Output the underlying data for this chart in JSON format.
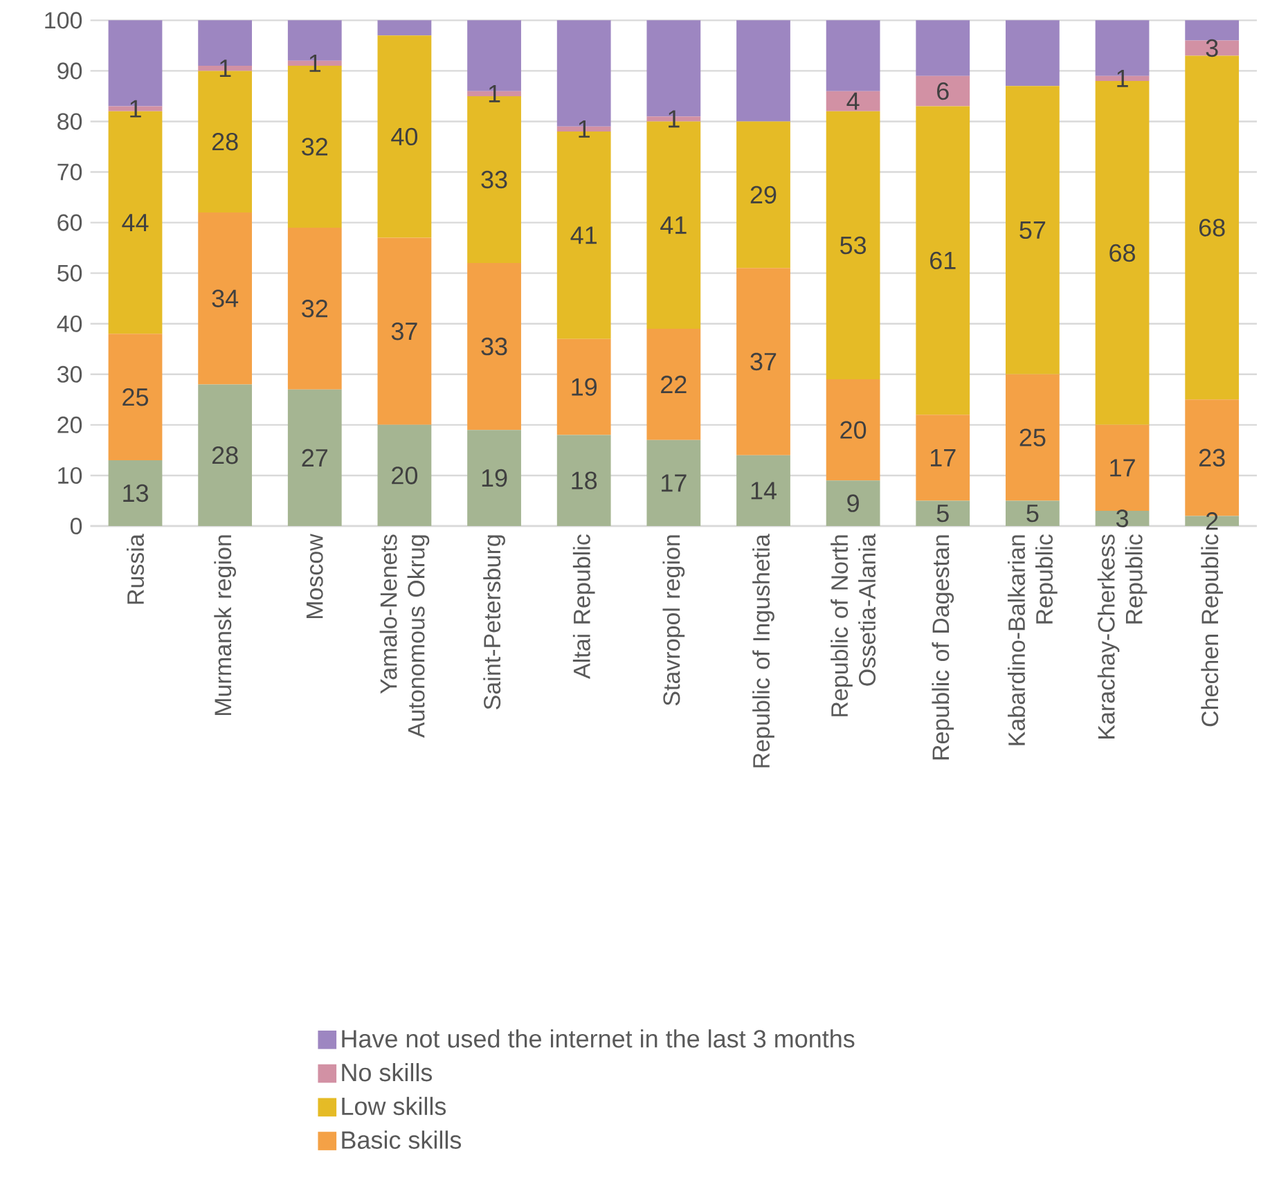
{
  "chart_data": {
    "type": "bar",
    "stacked": true,
    "grid": "y",
    "legend": "bottom",
    "categories": [
      "Russia",
      "Murmansk region",
      "Moscow",
      "Yamalo-Nenets Autonomous Okrug",
      "Saint-Petersburg",
      "Altai Republic",
      "Stavropol region",
      "Republic of Ingushetia",
      "Republic of North Ossetia-Alania",
      "Republic of Dagestan",
      "Kabardino-Balkarian Republic",
      "Karachay-Cherkess Republic",
      "Chechen Republic"
    ],
    "ylim": [
      0,
      100
    ],
    "yticks": [
      0,
      10,
      20,
      30,
      40,
      50,
      60,
      70,
      80,
      90,
      100
    ],
    "series": [
      {
        "color": "#a5b592",
        "values": [
          13,
          28,
          27,
          20,
          19,
          18,
          17,
          14,
          9,
          5,
          5,
          3,
          2
        ],
        "value_labels": [
          "13",
          "28",
          "27",
          "20",
          "19",
          "18",
          "17",
          "14",
          "9",
          "5",
          "5",
          "3",
          "2"
        ]
      },
      {
        "name": "Basic skills",
        "color": "#f4a146",
        "values": [
          25,
          34,
          32,
          37,
          33,
          19,
          22,
          37,
          20,
          17,
          25,
          17,
          23
        ],
        "value_labels": [
          "25",
          "34",
          "32",
          "37",
          "33",
          "19",
          "22",
          "37",
          "20",
          "17",
          "25",
          "17",
          "23"
        ]
      },
      {
        "name": "Low skills",
        "color": "#e5bb26",
        "values": [
          44,
          28,
          32,
          40,
          33,
          41,
          41,
          29,
          53,
          61,
          57,
          68,
          68
        ],
        "value_labels": [
          "44",
          "28",
          "32",
          "40",
          "33",
          "41",
          "41",
          "29",
          "53",
          "61",
          "57",
          "68",
          "68"
        ]
      },
      {
        "name": "No skills",
        "color": "#d291a4",
        "values": [
          1,
          1,
          1,
          0,
          1,
          1,
          1,
          0,
          4,
          6,
          0,
          1,
          3
        ],
        "value_labels": [
          "1",
          "1",
          "1",
          null,
          "1",
          "1",
          "1",
          null,
          "4",
          "6",
          null,
          "1",
          "3"
        ]
      },
      {
        "name": "Have not used the internet in the last 3 months",
        "color": "#9d86c1",
        "values": [
          17,
          9,
          8,
          3,
          14,
          21,
          19,
          20,
          14,
          11,
          13,
          11,
          4
        ]
      }
    ]
  }
}
